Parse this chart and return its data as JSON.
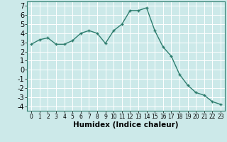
{
  "x": [
    0,
    1,
    2,
    3,
    4,
    5,
    6,
    7,
    8,
    9,
    10,
    11,
    12,
    13,
    14,
    15,
    16,
    17,
    18,
    19,
    20,
    21,
    22,
    23
  ],
  "y": [
    2.8,
    3.3,
    3.5,
    2.8,
    2.8,
    3.2,
    4.0,
    4.3,
    4.0,
    2.9,
    4.3,
    5.0,
    6.5,
    6.5,
    6.8,
    4.3,
    2.5,
    1.5,
    -0.5,
    -1.7,
    -2.5,
    -2.8,
    -3.5,
    -3.8
  ],
  "line_color": "#2e7d6e",
  "marker": "+",
  "marker_size": 3,
  "marker_linewidth": 1.0,
  "line_width": 1.0,
  "background_color": "#cce9e9",
  "grid_color": "#ffffff",
  "xlabel": "Humidex (Indice chaleur)",
  "ylim": [
    -4.5,
    7.5
  ],
  "xlim": [
    -0.5,
    23.5
  ],
  "yticks": [
    -4,
    -3,
    -2,
    -1,
    0,
    1,
    2,
    3,
    4,
    5,
    6,
    7
  ],
  "xticks": [
    0,
    1,
    2,
    3,
    4,
    5,
    6,
    7,
    8,
    9,
    10,
    11,
    12,
    13,
    14,
    15,
    16,
    17,
    18,
    19,
    20,
    21,
    22,
    23
  ],
  "xlabel_fontsize": 7.5,
  "xlabel_fontweight": "bold",
  "ytick_fontsize": 7.0,
  "xtick_fontsize": 5.5,
  "spine_color": "#2e7d6e"
}
